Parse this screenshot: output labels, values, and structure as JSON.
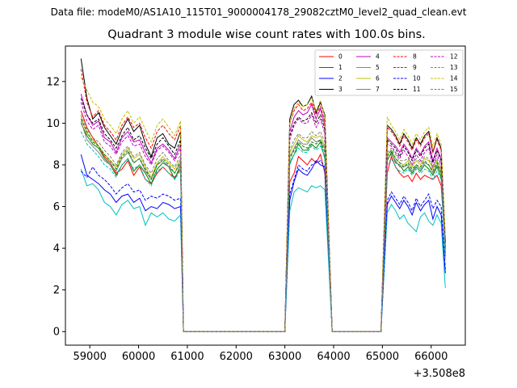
{
  "suptitle": "Data file: modeM0/AS1A10_115T01_9000004178_29082cztM0_level2_quad_clean.evt",
  "chart_data": {
    "type": "line",
    "title": "Quadrant 3 module wise count rates with 100.0s bins.",
    "xlabel": "",
    "ylabel": "",
    "x_offset_label": "+3.508e8",
    "xlim": [
      58500,
      66700
    ],
    "ylim": [
      -0.65,
      13.7
    ],
    "xticks": [
      59000,
      60000,
      61000,
      62000,
      63000,
      64000,
      65000,
      66000
    ],
    "yticks": [
      0,
      2,
      4,
      6,
      8,
      10,
      12
    ],
    "grid": false,
    "legend_position": "top-right",
    "legend_columns": 4,
    "segments_note": "data present in three intervals; count rate drops to 0 between them",
    "series": [
      {
        "name": "0",
        "color": "#ff0000",
        "dash": "solid",
        "s1": [
          10.6,
          9.8,
          9.3,
          8.9,
          8.4,
          8.1,
          7.6,
          7.8,
          8.2,
          7.5,
          7.9,
          7.3,
          7.1,
          7.6,
          7.9,
          7.6,
          7.4,
          7.8
        ],
        "s2": [
          7.2,
          7.6,
          8.4,
          8.2,
          8.0,
          8.3,
          8.1,
          8.5,
          7.6
        ],
        "s3": [
          7.6,
          8.4,
          7.9,
          7.6,
          7.4,
          7.5,
          7.2,
          7.6,
          7.3,
          7.5,
          7.4,
          7.3,
          7.5,
          7.0,
          4.0
        ]
      },
      {
        "name": "1",
        "color": "#008000",
        "dash": "solid",
        "s1": [
          10.0,
          9.4,
          9.0,
          8.8,
          8.3,
          8.0,
          7.5,
          8.0,
          8.3,
          7.7,
          8.0,
          7.6,
          7.1,
          7.8,
          8.1,
          7.9,
          7.3,
          8.0
        ],
        "s2": [
          8.1,
          8.5,
          9.0,
          8.7,
          8.7,
          9.0,
          8.8,
          9.1,
          8.3
        ],
        "s3": [
          8.2,
          8.6,
          8.1,
          8.0,
          7.7,
          7.9,
          7.6,
          7.9,
          7.7,
          8.0,
          7.8,
          7.5,
          7.9,
          7.4,
          3.6
        ]
      },
      {
        "name": "2",
        "color": "#0000ff",
        "dash": "solid",
        "s1": [
          8.5,
          7.5,
          7.3,
          7.1,
          6.8,
          6.6,
          6.2,
          6.5,
          6.6,
          6.2,
          6.4,
          5.8,
          6.0,
          5.9,
          6.2,
          6.1,
          5.9,
          6.0
        ],
        "s2": [
          6.3,
          7.2,
          7.8,
          7.6,
          7.5,
          7.8,
          8.2,
          8.0,
          7.9
        ],
        "s3": [
          6.1,
          6.5,
          6.2,
          5.9,
          6.3,
          6.0,
          5.6,
          6.2,
          5.8,
          6.1,
          6.3,
          5.4,
          6.0,
          5.6,
          2.8
        ]
      },
      {
        "name": "3",
        "color": "#000000",
        "dash": "solid",
        "s1": [
          13.1,
          11.2,
          10.2,
          10.5,
          9.8,
          9.4,
          9.0,
          9.7,
          10.2,
          9.6,
          9.9,
          9.0,
          8.4,
          9.3,
          9.5,
          9.0,
          8.8,
          9.6
        ],
        "s2": [
          10.2,
          10.9,
          11.1,
          10.8,
          10.9,
          11.3,
          10.5,
          11.0,
          10.4
        ],
        "s3": [
          9.9,
          9.7,
          9.4,
          9.0,
          9.5,
          9.2,
          8.8,
          9.3,
          9.0,
          9.4,
          9.6,
          8.6,
          9.3,
          8.8,
          4.3
        ]
      },
      {
        "name": "4",
        "color": "#c000c0",
        "dash": "solid",
        "s1": [
          11.4,
          10.4,
          9.9,
          10.1,
          9.3,
          9.1,
          8.6,
          9.3,
          9.6,
          9.1,
          9.2,
          8.6,
          8.1,
          8.8,
          9.0,
          8.7,
          8.3,
          9.0
        ],
        "s2": [
          9.6,
          10.3,
          10.6,
          10.4,
          10.5,
          10.9,
          10.2,
          10.7,
          9.9
        ],
        "s3": [
          9.3,
          9.1,
          8.9,
          8.6,
          9.0,
          8.7,
          8.3,
          8.8,
          8.5,
          8.9,
          9.1,
          8.2,
          8.8,
          8.3,
          4.1
        ]
      },
      {
        "name": "5",
        "color": "#00c0c0",
        "dash": "solid",
        "s1": [
          7.8,
          7.0,
          7.1,
          6.8,
          6.2,
          6.0,
          5.6,
          6.1,
          6.3,
          5.9,
          6.0,
          5.1,
          5.7,
          5.5,
          5.7,
          5.4,
          5.3,
          5.6
        ],
        "s2": [
          5.8,
          6.7,
          6.9,
          6.8,
          6.7,
          7.0,
          6.9,
          7.0,
          6.8
        ],
        "s3": [
          5.7,
          6.1,
          5.8,
          5.4,
          5.6,
          5.2,
          5.0,
          4.8,
          5.5,
          5.7,
          5.3,
          5.1,
          5.6,
          5.2,
          2.1
        ]
      },
      {
        "name": "6",
        "color": "#c0c000",
        "dash": "solid",
        "s1": [
          10.3,
          9.5,
          9.2,
          8.9,
          8.5,
          8.2,
          7.9,
          8.5,
          8.8,
          8.3,
          8.5,
          7.9,
          7.4,
          8.1,
          8.4,
          8.1,
          7.8,
          8.3
        ],
        "s2": [
          8.6,
          9.0,
          9.4,
          9.2,
          9.1,
          9.4,
          9.3,
          9.4,
          8.9
        ],
        "s3": [
          8.5,
          8.7,
          8.3,
          8.1,
          8.0,
          8.2,
          7.9,
          8.2,
          8.0,
          8.3,
          8.2,
          7.8,
          8.2,
          7.7,
          3.9
        ]
      },
      {
        "name": "7",
        "color": "#808080",
        "dash": "solid",
        "s1": [
          10.1,
          9.2,
          8.9,
          8.6,
          8.2,
          8.0,
          7.7,
          8.3,
          8.6,
          8.1,
          8.3,
          7.7,
          7.3,
          8.0,
          8.2,
          7.9,
          7.6,
          8.1
        ],
        "s2": [
          8.4,
          8.8,
          9.2,
          9.0,
          9.0,
          9.3,
          9.1,
          9.2,
          8.8
        ],
        "s3": [
          8.3,
          8.5,
          8.2,
          7.9,
          7.9,
          8.0,
          7.7,
          8.0,
          7.8,
          8.1,
          8.0,
          7.6,
          8.0,
          7.6,
          3.8
        ]
      },
      {
        "name": "8",
        "color": "#ff0000",
        "dash": "dashed",
        "s1": [
          12.6,
          11.0,
          10.3,
          10.6,
          9.9,
          9.6,
          9.2,
          9.9,
          10.3,
          9.8,
          10.0,
          9.3,
          8.8,
          9.6,
          9.9,
          9.5,
          9.2,
          9.9
        ],
        "s2": [
          10.0,
          10.6,
          10.9,
          10.6,
          10.7,
          11.0,
          10.4,
          10.8,
          10.1
        ],
        "s3": [
          9.8,
          9.6,
          9.3,
          8.9,
          9.4,
          9.1,
          8.7,
          9.2,
          8.9,
          9.3,
          9.5,
          8.6,
          9.2,
          8.7,
          4.4
        ]
      },
      {
        "name": "9",
        "color": "#008000",
        "dash": "dashed",
        "s1": [
          10.2,
          9.6,
          9.1,
          8.9,
          8.5,
          8.2,
          7.8,
          8.4,
          8.7,
          8.1,
          8.3,
          7.8,
          7.3,
          8.0,
          8.3,
          8.0,
          7.6,
          8.2
        ],
        "s2": [
          8.3,
          8.7,
          9.1,
          8.9,
          8.8,
          9.1,
          9.0,
          9.2,
          8.6
        ],
        "s3": [
          8.4,
          8.7,
          8.3,
          8.1,
          7.9,
          8.1,
          7.8,
          8.0,
          7.9,
          8.2,
          8.0,
          7.7,
          8.1,
          7.6,
          3.7
        ]
      },
      {
        "name": "10",
        "color": "#0000ff",
        "dash": "dashed",
        "s1": [
          7.7,
          7.4,
          7.9,
          7.5,
          7.3,
          7.0,
          6.6,
          6.9,
          7.1,
          6.7,
          6.8,
          6.3,
          6.5,
          6.4,
          6.6,
          6.5,
          6.3,
          6.4
        ],
        "s2": [
          6.6,
          7.3,
          8.0,
          7.8,
          7.7,
          8.0,
          8.1,
          8.2,
          7.9
        ],
        "s3": [
          6.3,
          6.7,
          6.4,
          6.1,
          6.5,
          6.2,
          5.8,
          6.4,
          6.0,
          6.3,
          6.6,
          5.9,
          6.3,
          6.0,
          3.0
        ]
      },
      {
        "name": "11",
        "color": "#000000",
        "dash": "dashed",
        "s1": [
          11.2,
          10.4,
          10.0,
          10.2,
          9.5,
          9.2,
          8.8,
          9.4,
          9.8,
          9.2,
          9.4,
          8.8,
          8.3,
          9.0,
          9.3,
          8.9,
          8.5,
          9.2
        ],
        "s2": [
          9.4,
          10.0,
          10.3,
          10.1,
          10.2,
          10.5,
          10.0,
          10.4,
          9.7
        ],
        "s3": [
          9.2,
          9.0,
          8.8,
          8.4,
          8.9,
          8.6,
          8.2,
          8.7,
          8.4,
          8.8,
          9.0,
          8.1,
          8.7,
          8.2,
          4.2
        ]
      },
      {
        "name": "12",
        "color": "#c000c0",
        "dash": "dashed",
        "s1": [
          11.0,
          10.1,
          9.7,
          9.9,
          9.1,
          8.9,
          8.5,
          9.1,
          9.4,
          8.9,
          9.0,
          8.4,
          8.0,
          8.7,
          8.9,
          8.6,
          8.2,
          8.8
        ],
        "s2": [
          9.2,
          9.9,
          10.2,
          10.0,
          10.0,
          10.4,
          9.8,
          10.2,
          9.5
        ],
        "s3": [
          9.0,
          8.9,
          8.6,
          8.3,
          8.7,
          8.4,
          8.0,
          8.5,
          8.2,
          8.6,
          8.8,
          7.9,
          8.5,
          8.0,
          4.0
        ]
      },
      {
        "name": "13",
        "color": "#00c0c0",
        "dash": "dashed",
        "s1": [
          9.6,
          9.0,
          8.7,
          8.4,
          8.0,
          7.8,
          7.4,
          8.0,
          8.3,
          7.8,
          8.0,
          7.3,
          7.0,
          7.7,
          7.9,
          7.6,
          7.3,
          7.7
        ],
        "s2": [
          8.0,
          8.5,
          8.8,
          8.6,
          8.6,
          8.9,
          8.7,
          8.9,
          8.4
        ],
        "s3": [
          8.0,
          8.3,
          7.9,
          7.7,
          7.6,
          7.8,
          7.5,
          7.8,
          7.6,
          7.8,
          7.7,
          7.3,
          7.7,
          7.3,
          3.5
        ]
      },
      {
        "name": "14",
        "color": "#c0c000",
        "dash": "dashed",
        "s1": [
          12.2,
          11.6,
          11.0,
          10.8,
          10.2,
          9.9,
          9.5,
          10.2,
          10.6,
          10.0,
          10.3,
          9.7,
          9.1,
          9.9,
          10.2,
          9.8,
          9.4,
          10.1
        ],
        "s2": [
          10.0,
          10.7,
          11.0,
          10.8,
          10.9,
          11.2,
          10.6,
          11.1,
          10.3
        ],
        "s3": [
          10.3,
          9.9,
          9.6,
          9.2,
          9.7,
          9.4,
          9.0,
          9.5,
          9.2,
          9.6,
          9.8,
          8.9,
          9.5,
          9.0,
          4.5
        ]
      },
      {
        "name": "15",
        "color": "#808080",
        "dash": "dashed",
        "s1": [
          10.4,
          9.7,
          9.3,
          9.1,
          8.7,
          8.4,
          8.0,
          8.6,
          8.9,
          8.4,
          8.6,
          8.0,
          7.6,
          8.3,
          8.6,
          8.2,
          7.9,
          8.5
        ],
        "s2": [
          8.7,
          9.2,
          9.5,
          9.3,
          9.3,
          9.6,
          9.4,
          9.6,
          9.1
        ],
        "s3": [
          8.6,
          8.8,
          8.5,
          8.2,
          8.2,
          8.3,
          8.0,
          8.3,
          8.1,
          8.4,
          8.3,
          7.9,
          8.3,
          7.8,
          3.9
        ]
      }
    ],
    "segments": [
      {
        "key": "s1",
        "x_start": 58820,
        "step": 120,
        "gap_fall_x": 60920,
        "gap_level_x": 61000
      },
      {
        "key": "s2",
        "x_start": 63100,
        "step": 90,
        "rise_x": 63000,
        "fall_x": 63970
      },
      {
        "key": "s3",
        "x_start": 65100,
        "step": 85,
        "rise_x": 64970
      }
    ],
    "zero_ranges": [
      [
        61000,
        63000
      ],
      [
        63970,
        64970
      ]
    ]
  }
}
